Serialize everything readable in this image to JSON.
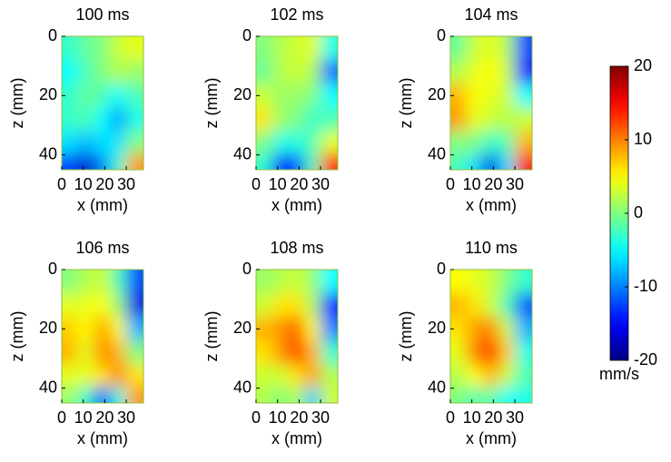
{
  "chart_data": [
    {
      "type": "heatmap",
      "title": "100 ms",
      "xlabel": "x (mm)",
      "ylabel": "z (mm)",
      "x": [
        4,
        11,
        19,
        26,
        34
      ],
      "y": [
        4,
        12,
        20,
        28,
        36,
        43
      ],
      "xlim": [
        0,
        38
      ],
      "ylim": [
        0,
        45
      ],
      "xticks": [
        0,
        10,
        20,
        30
      ],
      "yticks": [
        0,
        20,
        40
      ],
      "values": [
        [
          -3,
          -1,
          0,
          3,
          4
        ],
        [
          -5,
          -2,
          0,
          2,
          1
        ],
        [
          -3,
          -1,
          -2,
          -5,
          -2
        ],
        [
          -3,
          -2,
          -5,
          -9,
          -4
        ],
        [
          -6,
          -8,
          -6,
          -6,
          0
        ],
        [
          -12,
          -17,
          -10,
          -3,
          9
        ]
      ]
    },
    {
      "type": "heatmap",
      "title": "102 ms",
      "xlabel": "x (mm)",
      "ylabel": "z (mm)",
      "x": [
        4,
        11,
        19,
        26,
        34
      ],
      "y": [
        4,
        12,
        20,
        28,
        36,
        43
      ],
      "xlim": [
        0,
        38
      ],
      "ylim": [
        0,
        45
      ],
      "xticks": [
        0,
        10,
        20,
        30
      ],
      "yticks": [
        0,
        20,
        40
      ],
      "values": [
        [
          0,
          2,
          3,
          4,
          -4
        ],
        [
          -1,
          2,
          3,
          2,
          -11
        ],
        [
          3,
          1,
          1,
          0,
          -5
        ],
        [
          6,
          1,
          0,
          -3,
          -2
        ],
        [
          0,
          -4,
          -4,
          -2,
          4
        ],
        [
          -3,
          -15,
          -12,
          -2,
          14
        ]
      ]
    },
    {
      "type": "heatmap",
      "title": "104 ms",
      "xlabel": "x (mm)",
      "ylabel": "z (mm)",
      "x": [
        4,
        11,
        19,
        26,
        34
      ],
      "y": [
        4,
        12,
        20,
        28,
        36,
        43
      ],
      "xlim": [
        0,
        38
      ],
      "ylim": [
        0,
        45
      ],
      "xticks": [
        0,
        10,
        20,
        30
      ],
      "yticks": [
        0,
        20,
        40
      ],
      "values": [
        [
          -1,
          3,
          4,
          2,
          -12
        ],
        [
          2,
          4,
          5,
          3,
          -15
        ],
        [
          8,
          5,
          4,
          3,
          -5
        ],
        [
          9,
          4,
          3,
          2,
          3
        ],
        [
          0,
          0,
          -3,
          -2,
          8
        ],
        [
          -2,
          -6,
          -16,
          -6,
          15
        ]
      ]
    },
    {
      "type": "heatmap",
      "title": "106 ms",
      "xlabel": "x (mm)",
      "ylabel": "z (mm)",
      "x": [
        4,
        11,
        19,
        26,
        34
      ],
      "y": [
        4,
        12,
        20,
        28,
        36,
        43
      ],
      "xlim": [
        0,
        38
      ],
      "ylim": [
        0,
        45
      ],
      "xticks": [
        0,
        10,
        20,
        30
      ],
      "yticks": [
        0,
        20,
        40
      ],
      "values": [
        [
          0,
          2,
          3,
          -2,
          -12
        ],
        [
          4,
          4,
          5,
          1,
          -16
        ],
        [
          7,
          5,
          9,
          5,
          -8
        ],
        [
          8,
          4,
          10,
          8,
          0
        ],
        [
          4,
          4,
          6,
          10,
          6
        ],
        [
          1,
          -3,
          -13,
          -4,
          9
        ]
      ]
    },
    {
      "type": "heatmap",
      "title": "108 ms",
      "xlabel": "x (mm)",
      "ylabel": "z (mm)",
      "x": [
        4,
        11,
        19,
        26,
        34
      ],
      "y": [
        4,
        12,
        20,
        28,
        36,
        43
      ],
      "xlim": [
        0,
        38
      ],
      "ylim": [
        0,
        45
      ],
      "xticks": [
        0,
        10,
        20,
        30
      ],
      "yticks": [
        0,
        20,
        40
      ],
      "values": [
        [
          1,
          2,
          3,
          1,
          -5
        ],
        [
          3,
          6,
          6,
          2,
          -15
        ],
        [
          8,
          9,
          12,
          5,
          -10
        ],
        [
          6,
          9,
          13,
          8,
          -3
        ],
        [
          3,
          3,
          6,
          9,
          2
        ],
        [
          2,
          0,
          2,
          -7,
          3
        ]
      ]
    },
    {
      "type": "heatmap",
      "title": "110 ms",
      "xlabel": "x (mm)",
      "ylabel": "z (mm)",
      "x": [
        4,
        11,
        19,
        26,
        34
      ],
      "y": [
        4,
        12,
        20,
        28,
        36,
        43
      ],
      "xlim": [
        0,
        38
      ],
      "ylim": [
        0,
        45
      ],
      "xticks": [
        0,
        10,
        20,
        30
      ],
      "yticks": [
        0,
        20,
        40
      ],
      "values": [
        [
          5,
          4,
          3,
          0,
          -3
        ],
        [
          8,
          6,
          3,
          -2,
          -12
        ],
        [
          6,
          9,
          10,
          3,
          -8
        ],
        [
          4,
          10,
          14,
          7,
          -4
        ],
        [
          2,
          5,
          8,
          3,
          -2
        ],
        [
          0,
          -2,
          -1,
          -5,
          -4
        ]
      ]
    },
    {
      "type": "colorbar",
      "label": "mm/s",
      "colormap": "jet",
      "lim": [
        -20,
        20
      ],
      "ticks": [
        -20,
        -10,
        0,
        10,
        20
      ]
    }
  ]
}
